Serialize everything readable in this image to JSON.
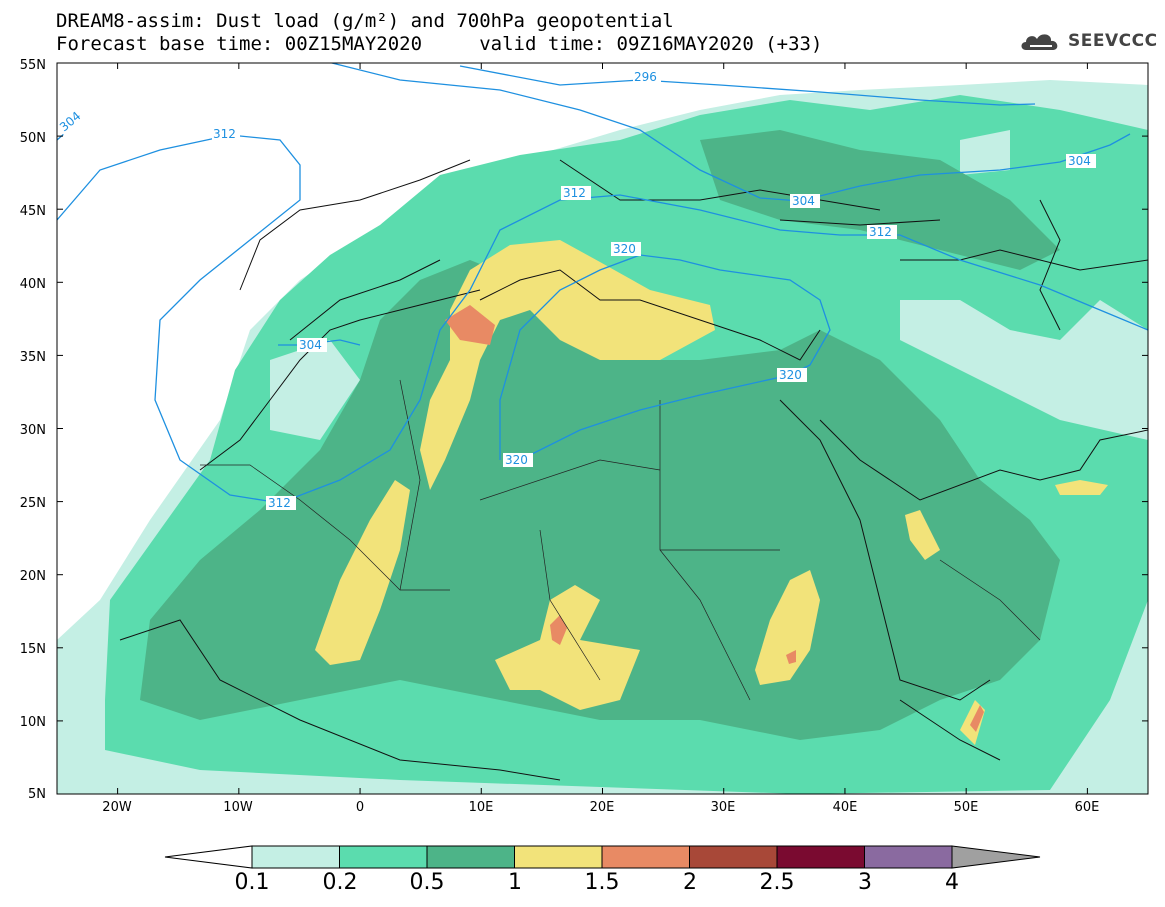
{
  "title_line1": "DREAM8-assim: Dust load (g/m²) and 700hPa geopotential",
  "title_line2": "Forecast base time: 00Z15MAY2020     valid time: 09Z16MAY2020 (+33)",
  "logo_text": "SEEVCCC",
  "logo_icon": "cloud-icon",
  "lat_labels": [
    "55N",
    "50N",
    "45N",
    "40N",
    "35N",
    "30N",
    "25N",
    "20N",
    "15N",
    "10N",
    "5N"
  ],
  "lon_labels": [
    "20W",
    "10W",
    "0",
    "10E",
    "20E",
    "30E",
    "40E",
    "50E",
    "60E"
  ],
  "contour_labels": [
    "304",
    "312",
    "296",
    "304",
    "304",
    "312",
    "312",
    "320",
    "304",
    "320",
    "320",
    "312"
  ],
  "colorbar_labels": [
    "0.1",
    "0.2",
    "0.5",
    "1",
    "1.5",
    "2",
    "2.5",
    "3",
    "4"
  ],
  "colorbar_colors": [
    "#c4efe4",
    "#5bdcae",
    "#4db488",
    "#f2e37a",
    "#e88a64",
    "#a84838",
    "#7a0a30",
    "#8a6aa0"
  ],
  "geopotential_contour_color": "#1e90e0",
  "map_extent": {
    "lon": [
      -25,
      65
    ],
    "lat": [
      5,
      55
    ]
  }
}
